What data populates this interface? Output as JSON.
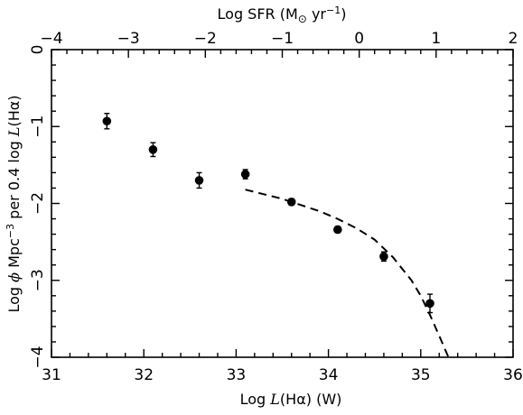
{
  "chart_data": {
    "type": "scatter",
    "xlabel": "Log L(Hα) (W)",
    "ylabel": "Log ϕ Mpc⁻³ per 0.4 log L(Hα)",
    "top_xlabel": "Log SFR (M⊙ yr⁻¹)",
    "xlim": [
      31,
      36
    ],
    "ylim": [
      -4,
      0
    ],
    "top_xlim": [
      -4,
      2
    ],
    "xticks": [
      "31",
      "32",
      "33",
      "34",
      "35",
      "36"
    ],
    "yticks": [
      "0",
      "−1",
      "−2",
      "−3",
      "−4"
    ],
    "top_xticks": [
      "−4",
      "−3",
      "−2",
      "−1",
      "0",
      "1",
      "2"
    ],
    "x_minor_step": 0.2,
    "y_minor_step": 0.2,
    "top_minor_step": 0.2,
    "series": [
      {
        "kind": "points-with-errorbars",
        "points": [
          {
            "x": 31.6,
            "y": -0.93,
            "err": 0.1
          },
          {
            "x": 32.1,
            "y": -1.3,
            "err": 0.09
          },
          {
            "x": 32.6,
            "y": -1.7,
            "err": 0.1
          },
          {
            "x": 33.1,
            "y": -1.62,
            "err": 0.06
          },
          {
            "x": 33.6,
            "y": -1.98,
            "err": 0.04
          },
          {
            "x": 34.1,
            "y": -2.34,
            "err": 0.04
          },
          {
            "x": 34.6,
            "y": -2.69,
            "err": 0.06
          },
          {
            "x": 35.1,
            "y": -3.3,
            "err": 0.12
          }
        ]
      },
      {
        "kind": "dashed-fit",
        "x": [
          33.1,
          33.3,
          33.5,
          33.7,
          33.9,
          34.1,
          34.3,
          34.5,
          34.7,
          34.9,
          35.0,
          35.1,
          35.2,
          35.3
        ],
        "y": [
          -1.82,
          -1.88,
          -1.94,
          -2.02,
          -2.1,
          -2.2,
          -2.32,
          -2.47,
          -2.7,
          -3.0,
          -3.2,
          -3.45,
          -3.72,
          -4.0
        ]
      }
    ]
  },
  "figure": {
    "xlabel_prefix": "Log ",
    "xlabel_L": "L",
    "xlabel_rest": "(Hα) (W)",
    "top_label_prefix": "Log SFR (M",
    "top_label_sun": "⊙",
    "top_label_mid": " yr",
    "top_label_exp": "−1",
    "top_label_close": ")",
    "ylabel_pre": "Log ",
    "ylabel_phi": "ϕ",
    "ylabel_mpc": " Mpc",
    "ylabel_exp": "−3",
    "ylabel_per": " per 0.4 log ",
    "ylabel_L": "L",
    "ylabel_tail": "(Hα)"
  }
}
